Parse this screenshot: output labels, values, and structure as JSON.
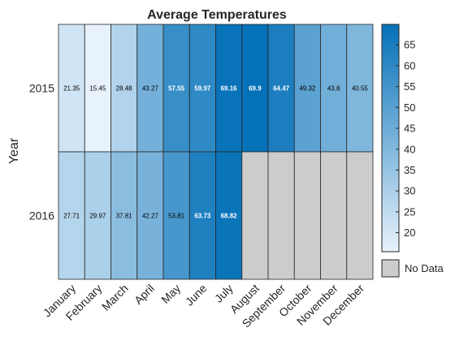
{
  "chart_data": {
    "type": "heatmap",
    "title": "Average Temperatures",
    "ylabel": "Year",
    "xlabel": "",
    "x_categories": [
      "January",
      "February",
      "March",
      "April",
      "May",
      "June",
      "July",
      "August",
      "September",
      "October",
      "November",
      "December"
    ],
    "y_categories": [
      "2015",
      "2016"
    ],
    "values": [
      [
        21.35,
        15.45,
        28.48,
        43.27,
        57.55,
        59.97,
        69.16,
        69.9,
        64.47,
        49.32,
        43.8,
        40.55
      ],
      [
        27.71,
        29.97,
        37.81,
        42.27,
        53.81,
        63.73,
        68.82,
        null,
        null,
        null,
        null,
        null
      ]
    ],
    "cell_labels": [
      [
        "21.35",
        "15.45",
        "28.48",
        "43.27",
        "57.55",
        "59.97",
        "69.16",
        "69.9",
        "64.47",
        "49.32",
        "43.8",
        "40.55"
      ],
      [
        "27.71",
        "29.97",
        "37.81",
        "42.27",
        "53.81",
        "63.73",
        "68.82",
        "",
        "",
        "",
        "",
        ""
      ]
    ],
    "colorbar": {
      "ticks": [
        20,
        25,
        30,
        35,
        40,
        45,
        50,
        55,
        60,
        65
      ],
      "tick_labels": [
        "20",
        "25",
        "30",
        "35",
        "40",
        "45",
        "50",
        "55",
        "60",
        "65"
      ],
      "range": [
        15.45,
        69.9
      ],
      "low_color": "#e8f2fb",
      "high_color": "#0571b8"
    },
    "missing_label": "No Data",
    "missing_color": "#cccccc"
  }
}
